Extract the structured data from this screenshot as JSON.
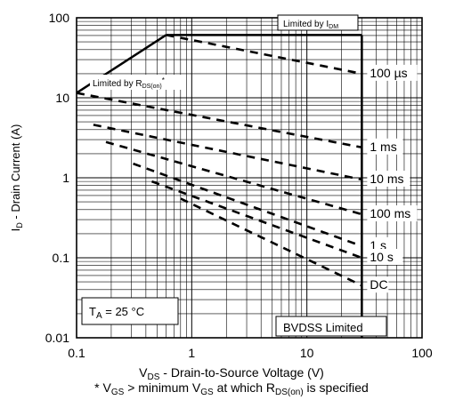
{
  "chart_data": {
    "type": "line",
    "title": "",
    "xscale": "log",
    "yscale": "log",
    "xlim": [
      0.1,
      100
    ],
    "ylim": [
      0.01,
      100
    ],
    "xticks": [
      0.1,
      1,
      10,
      100
    ],
    "xtick_labels": [
      "0.1",
      "1",
      "10",
      "100"
    ],
    "yticks": [
      0.01,
      0.1,
      1,
      10,
      100
    ],
    "ytick_labels": [
      "0.01",
      "0.1",
      "1",
      "10",
      "100"
    ],
    "grid": true,
    "ylabel": {
      "main": "I",
      "sub": "D",
      "rest": " - Drain Current (A)"
    },
    "xlabel": {
      "main": "V",
      "sub": "DS",
      "rest": " - Drain-to-Source Voltage (V)"
    },
    "footnote": {
      "p1": "* V",
      "s1": "GS",
      "p2": " > minimum V",
      "s2": "GS",
      "p3": " at which R",
      "s3": "DS(on)",
      "p4": " is specified"
    },
    "limit_lines": [
      {
        "name": "rds_on_limit",
        "x": [
          0.1,
          0.6
        ],
        "y": [
          11.5,
          61
        ]
      },
      {
        "name": "idm_limit",
        "x": [
          0.6,
          30
        ],
        "y": [
          61,
          61
        ]
      },
      {
        "name": "bvdss_limit",
        "x": [
          30,
          30
        ],
        "y": [
          61,
          0.01
        ]
      }
    ],
    "series": [
      {
        "name": "100 µs",
        "x": [
          0.6,
          30
        ],
        "y": [
          61,
          20
        ]
      },
      {
        "name": "1 ms",
        "x": [
          0.1,
          30
        ],
        "y": [
          11.5,
          2.4
        ]
      },
      {
        "name": "10 ms",
        "x": [
          0.14,
          30
        ],
        "y": [
          4.6,
          0.95
        ]
      },
      {
        "name": "100 ms",
        "x": [
          0.18,
          30
        ],
        "y": [
          2.8,
          0.35
        ]
      },
      {
        "name": "1 s",
        "x": [
          0.31,
          30
        ],
        "y": [
          1.5,
          0.14
        ]
      },
      {
        "name": "10 s",
        "x": [
          0.45,
          30
        ],
        "y": [
          0.9,
          0.1
        ]
      },
      {
        "name": "DC",
        "x": [
          0.8,
          30
        ],
        "y": [
          0.55,
          0.045
        ]
      }
    ],
    "labels": {
      "limited_idm": {
        "main": "Limited by I",
        "sub": "DM"
      },
      "limited_rds": {
        "main": "Limited by R",
        "sub": "DS(on)",
        "suffix": "*"
      },
      "ta": {
        "main": "T",
        "sub": "A",
        "rest": " = 25 °C"
      },
      "bvdss": "BVDSS Limited"
    },
    "colors": {
      "line": "#000000",
      "grid": "#000000",
      "background": "#ffffff"
    }
  }
}
